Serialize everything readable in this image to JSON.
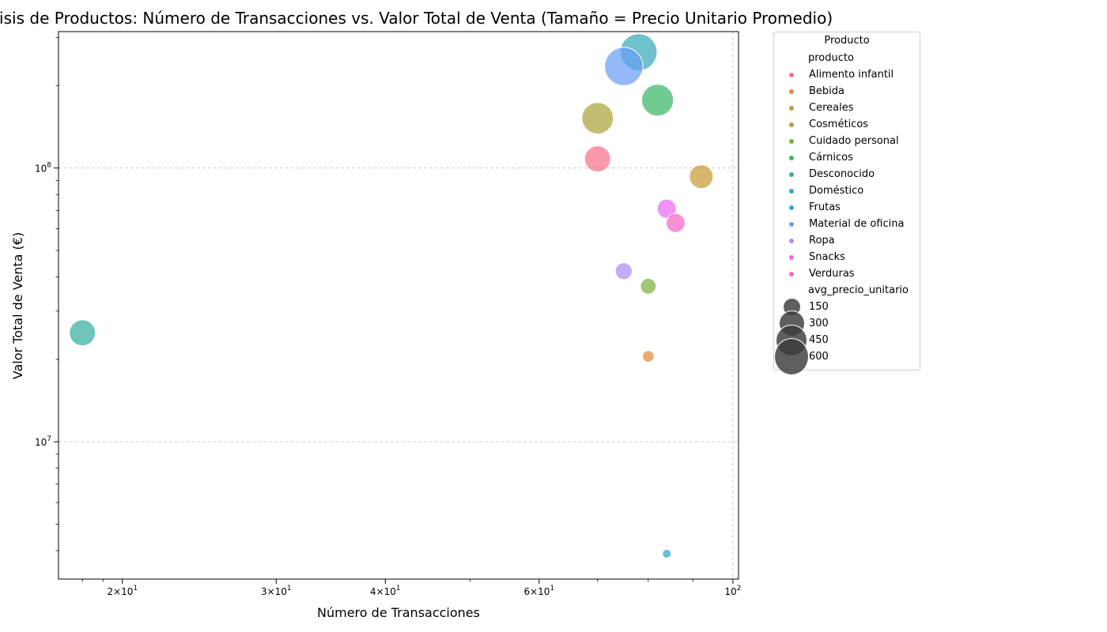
{
  "chart_data": {
    "type": "scatter",
    "title": "Análisis de Productos: Número de Transacciones vs. Valor Total de Venta (Tamaño = Precio Unitario Promedio)",
    "xlabel": "Número de Transacciones",
    "ylabel": "Valor Total de Venta (€)",
    "xscale": "log",
    "yscale": "log",
    "xlim": [
      16.9,
      101.5
    ],
    "ylim": [
      3150000,
      315000000
    ],
    "x_tick_labels": [
      {
        "value": 20,
        "label": "2×10",
        "exp": "1"
      },
      {
        "value": 30,
        "label": "3×10",
        "exp": "1"
      },
      {
        "value": 40,
        "label": "4×10",
        "exp": "1"
      },
      {
        "value": 60,
        "label": "6×10",
        "exp": "1"
      },
      {
        "value": 100,
        "label": "10",
        "exp": "2"
      }
    ],
    "y_tick_labels": [
      {
        "value": 10000000,
        "label": "10",
        "exp": "7"
      },
      {
        "value": 100000000,
        "label": "10",
        "exp": "8"
      }
    ],
    "grid": true,
    "legend_placement": "outside-right",
    "legend": {
      "title": "Producto",
      "hue_header": "producto",
      "size_header": "avg_precio_unitario",
      "size_entries": [
        150,
        300,
        450,
        600
      ]
    },
    "series": [
      {
        "name": "Alimento infantil",
        "color": "#f77189",
        "points": [
          {
            "x": 70,
            "y": 108000000,
            "size": 300
          }
        ]
      },
      {
        "name": "Bebida",
        "color": "#e38c3a",
        "points": [
          {
            "x": 80,
            "y": 20500000,
            "size": 60
          }
        ]
      },
      {
        "name": "Cereales",
        "color": "#c79a36",
        "points": [
          {
            "x": 92,
            "y": 93000000,
            "size": 250
          }
        ]
      },
      {
        "name": "Cosméticos",
        "color": "#a9a53a",
        "points": [
          {
            "x": 70,
            "y": 152000000,
            "size": 440
          }
        ]
      },
      {
        "name": "Cuidado personal",
        "color": "#7bb241",
        "points": [
          {
            "x": 80,
            "y": 37000000,
            "size": 110
          }
        ]
      },
      {
        "name": "Cárnicos",
        "color": "#3bb56a",
        "points": [
          {
            "x": 82,
            "y": 177000000,
            "size": 450
          }
        ]
      },
      {
        "name": "Desconocido",
        "color": "#36ae9f",
        "points": [
          {
            "x": 18,
            "y": 25000000,
            "size": 300
          }
        ]
      },
      {
        "name": "Doméstico",
        "color": "#38a9b8",
        "points": [
          {
            "x": 78,
            "y": 265000000,
            "size": 600
          }
        ]
      },
      {
        "name": "Frutas",
        "color": "#3aa5cc",
        "points": [
          {
            "x": 84,
            "y": 3900000,
            "size": 35
          }
        ]
      },
      {
        "name": "Material de oficina",
        "color": "#6a9ef5",
        "points": [
          {
            "x": 75,
            "y": 235000000,
            "size": 650
          }
        ]
      },
      {
        "name": "Ropa",
        "color": "#ad8cf5",
        "points": [
          {
            "x": 75,
            "y": 42000000,
            "size": 125
          }
        ]
      },
      {
        "name": "Snacks",
        "color": "#e969f2",
        "points": [
          {
            "x": 84,
            "y": 71000000,
            "size": 160
          }
        ]
      },
      {
        "name": "Verduras",
        "color": "#f667c4",
        "points": [
          {
            "x": 86,
            "y": 63000000,
            "size": 160
          }
        ]
      }
    ]
  }
}
